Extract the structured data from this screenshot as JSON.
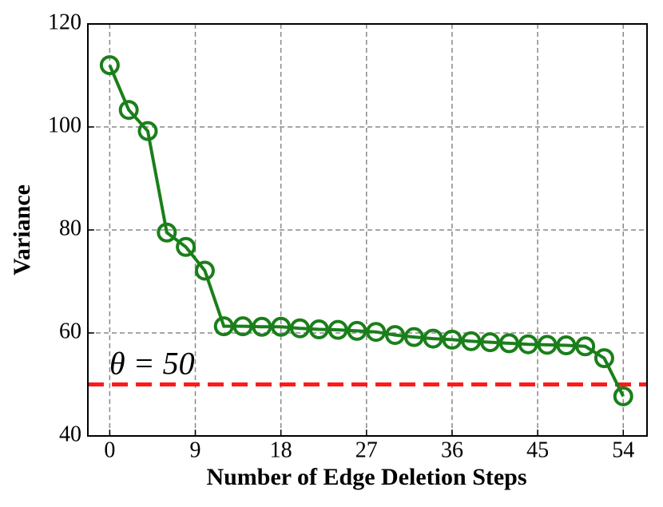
{
  "chart_data": {
    "type": "line",
    "x_label": "Number of Edge Deletion Steps",
    "y_label": "Variance",
    "x": [
      0,
      2,
      4,
      6,
      8,
      10,
      12,
      14,
      16,
      18,
      20,
      22,
      24,
      26,
      28,
      30,
      32,
      34,
      36,
      38,
      40,
      42,
      44,
      46,
      48,
      50,
      52,
      54
    ],
    "series": [
      {
        "name": "Variance",
        "color": "#1a7f1a",
        "values": [
          112,
          103.3,
          99.2,
          79.5,
          76.7,
          72.1,
          61.3,
          61.3,
          61.2,
          61.2,
          60.9,
          60.7,
          60.6,
          60.4,
          60.2,
          59.6,
          59.2,
          58.9,
          58.7,
          58.4,
          58.2,
          58.0,
          57.8,
          57.7,
          57.6,
          57.4,
          55.1,
          47.7
        ]
      }
    ],
    "threshold": {
      "value": 50,
      "label": "θ = 50",
      "color": "#ff1a1a"
    },
    "xlim": [
      -2.3,
      56.5
    ],
    "ylim": [
      40,
      120
    ],
    "xticks": [
      0,
      9,
      18,
      27,
      36,
      45,
      54
    ],
    "yticks": [
      40,
      60,
      80,
      100,
      120
    ],
    "grid": true
  }
}
